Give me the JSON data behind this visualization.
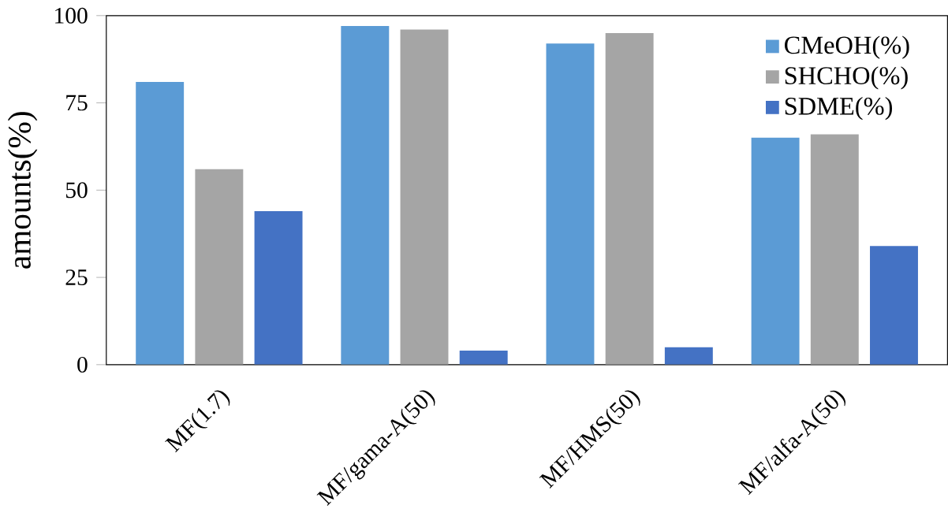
{
  "chart_data": {
    "type": "bar",
    "ylabel": "amounts(%)",
    "categories": [
      "MF(1.7)",
      "MF/gama-A(50)",
      "MF/HMS(50)",
      "MF/alfa-A(50)"
    ],
    "series": [
      {
        "name": "CMeOH(%)",
        "color": "#5b9bd5",
        "values": [
          81,
          97,
          92,
          65
        ]
      },
      {
        "name": "SHCHO(%)",
        "color": "#a5a5a5",
        "values": [
          56,
          96,
          95,
          66
        ]
      },
      {
        "name": "SDME(%)",
        "color": "#4472c4",
        "values": [
          44,
          4,
          5,
          34
        ]
      }
    ],
    "ylim": [
      0,
      100
    ],
    "yticks": [
      0,
      25,
      50,
      75,
      100
    ],
    "grid": false,
    "legend": "top right"
  }
}
